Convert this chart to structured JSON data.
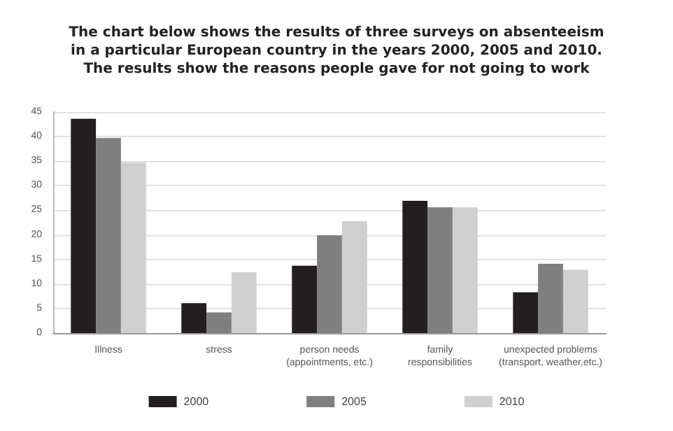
{
  "chart_data": {
    "type": "bar",
    "title": "The chart below shows the results of three surveys on absenteeism\nin a particular European country in the years 2000, 2005 and 2010.\nThe results show the reasons people gave for not going to work",
    "categories": [
      "Illness",
      "stress",
      "person needs\n(appointments, etc.)",
      "family\nresponsibilities",
      "unexpected problems\n(transport, weather,etc.)"
    ],
    "series": [
      {
        "name": "2000",
        "color": "#231f20",
        "values": [
          43.6,
          6.1,
          13.7,
          26.9,
          8.3
        ]
      },
      {
        "name": "2005",
        "color": "#7f7f7f",
        "values": [
          39.7,
          4.2,
          19.9,
          25.6,
          14.1
        ]
      },
      {
        "name": "2010",
        "color": "#d0d0d0",
        "values": [
          34.7,
          12.4,
          22.8,
          25.6,
          12.9
        ]
      }
    ],
    "ylim": [
      0,
      45
    ],
    "yticks": [
      0,
      5,
      10,
      15,
      20,
      25,
      30,
      35,
      40,
      45
    ],
    "grid": "y",
    "legend": "bottom"
  }
}
